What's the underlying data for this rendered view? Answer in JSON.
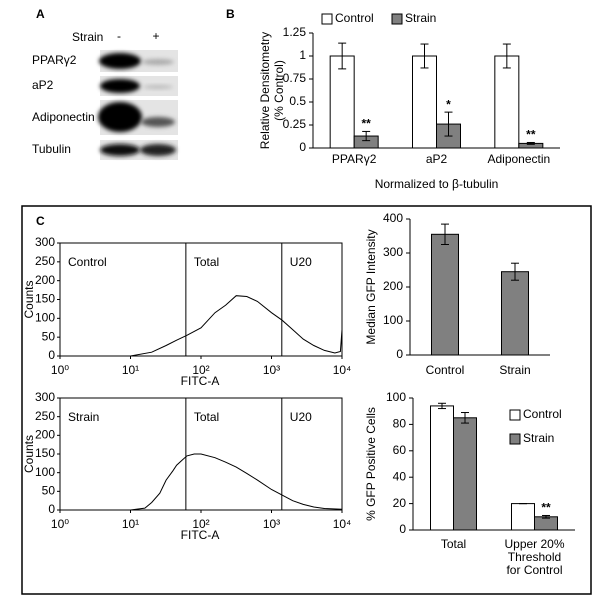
{
  "panel_labels": [
    "A",
    "B",
    "C"
  ],
  "blot": {
    "treatment_label": "Strain",
    "lanes": [
      "-",
      "+"
    ],
    "rows": [
      "PPARγ2",
      "aP2",
      "Adiponectin",
      "Tubulin"
    ]
  },
  "chart_data": [
    {
      "type": "bar",
      "ylabel": [
        "Relative Densitometry",
        "(% Control)"
      ],
      "xlabel": "Normalized to β-tubulin",
      "categories": [
        "PPARγ2",
        "aP2",
        "Adiponectin"
      ],
      "series": [
        {
          "name": "Control",
          "color": "#ffffff",
          "values": [
            1,
            1,
            1
          ],
          "errors": [
            0.14,
            0.13,
            0.13
          ]
        },
        {
          "name": "Strain",
          "color": "#808080",
          "values": [
            0.13,
            0.26,
            0.05
          ],
          "errors": [
            0.05,
            0.13,
            0.01
          ],
          "significance": [
            "**",
            "*",
            "**"
          ]
        }
      ],
      "ylim": [
        0,
        1.25
      ],
      "yticks": [
        0,
        0.25,
        0.5,
        0.75,
        1,
        1.25
      ],
      "legend": "top"
    },
    {
      "type": "line",
      "sample": "Control",
      "xlabel": "FITC-A",
      "ylabel": "Counts",
      "xscale": "log",
      "color": "#000000",
      "x": [
        10,
        20,
        32,
        45,
        63,
        100,
        158,
        224,
        316,
        447,
        631,
        1000,
        1413,
        2000,
        2818,
        3981,
        5623,
        7943,
        9500,
        10000
      ],
      "values": [
        0,
        10,
        28,
        42,
        55,
        75,
        115,
        135,
        160,
        158,
        145,
        115,
        95,
        70,
        45,
        28,
        15,
        8,
        12,
        70
      ],
      "gates": [
        {
          "label": "Total",
          "x": 61
        },
        {
          "label": "U20",
          "x": 1400
        }
      ],
      "xlim": [
        1,
        10000
      ],
      "ylim": [
        0,
        300
      ],
      "xticks": [
        {
          "value": 1,
          "label": "10⁰"
        },
        {
          "value": 10,
          "label": "10¹"
        },
        {
          "value": 100,
          "label": "10²"
        },
        {
          "value": 1000,
          "label": "10³"
        },
        {
          "value": 10000,
          "label": "10⁴"
        }
      ],
      "yticks": [
        0,
        50,
        100,
        150,
        200,
        250,
        300
      ]
    },
    {
      "type": "line",
      "sample": "Strain",
      "xlabel": "FITC-A",
      "ylabel": "Counts",
      "xscale": "log",
      "color": "#000000",
      "x": [
        10,
        16,
        20,
        26,
        32,
        40,
        45,
        55,
        63,
        80,
        100,
        158,
        224,
        316,
        447,
        631,
        1000,
        1413,
        2000,
        2818,
        3981,
        5623,
        10000
      ],
      "values": [
        0,
        5,
        20,
        45,
        80,
        105,
        120,
        135,
        145,
        150,
        150,
        140,
        128,
        115,
        98,
        80,
        55,
        40,
        25,
        15,
        8,
        4,
        2
      ],
      "gates": [
        {
          "label": "Total",
          "x": 61
        },
        {
          "label": "U20",
          "x": 1400
        }
      ],
      "xlim": [
        1,
        10000
      ],
      "ylim": [
        0,
        300
      ],
      "xticks": [
        {
          "value": 1,
          "label": "10⁰"
        },
        {
          "value": 10,
          "label": "10¹"
        },
        {
          "value": 100,
          "label": "10²"
        },
        {
          "value": 1000,
          "label": "10³"
        },
        {
          "value": 10000,
          "label": "10⁴"
        }
      ],
      "yticks": [
        0,
        50,
        100,
        150,
        200,
        250,
        300
      ]
    },
    {
      "type": "bar",
      "ylabel": "Median  GFP Intensity",
      "categories": [
        "Control",
        "Strain"
      ],
      "series": [
        {
          "color": "#808080",
          "values": [
            355,
            245
          ],
          "errors": [
            30,
            25
          ]
        }
      ],
      "ylim": [
        0,
        400
      ],
      "yticks": [
        0,
        100,
        200,
        300,
        400
      ]
    },
    {
      "type": "bar",
      "ylabel": "% GFP Positive Cells",
      "categories": [
        "Total",
        "Upper  20%\nThreshold\nfor Control"
      ],
      "series": [
        {
          "name": "Control",
          "color": "#ffffff",
          "values": [
            94,
            20
          ],
          "errors": [
            2,
            0
          ]
        },
        {
          "name": "Strain",
          "color": "#808080",
          "values": [
            85,
            10
          ],
          "errors": [
            4,
            1
          ],
          "significance": [
            null,
            "**"
          ]
        }
      ],
      "ylim": [
        0,
        100
      ],
      "yticks": [
        0,
        20,
        40,
        60,
        80,
        100
      ],
      "legend": "right"
    }
  ]
}
